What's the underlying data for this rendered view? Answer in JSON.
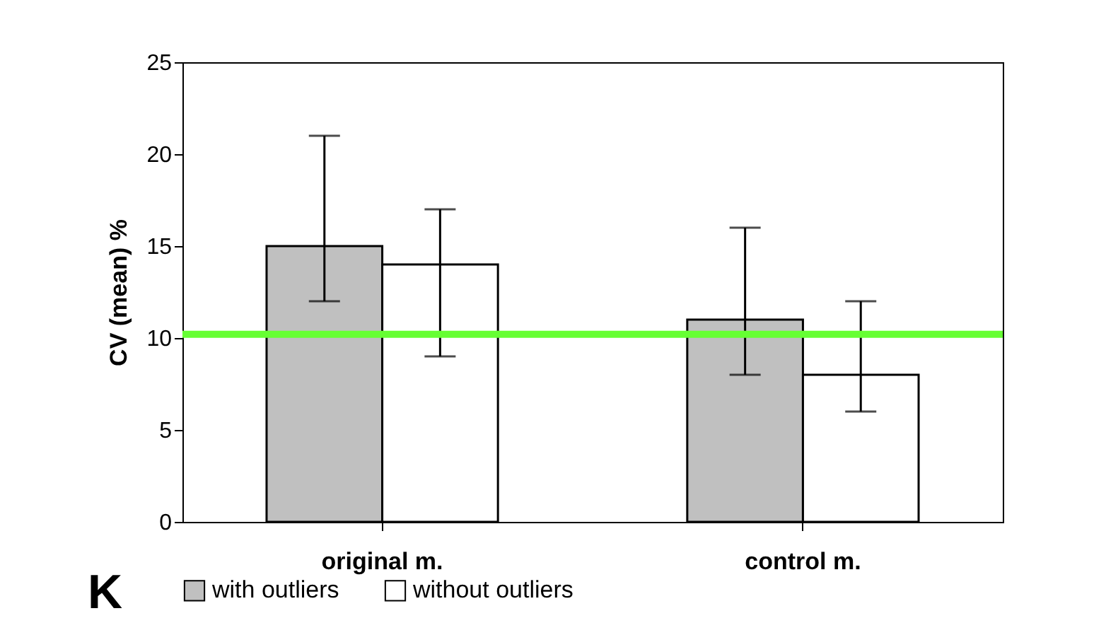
{
  "chart_data": {
    "type": "bar",
    "ylabel": "CV (mean)  %",
    "categories": [
      "original m.",
      "control m."
    ],
    "series": [
      {
        "name": "with outliers",
        "color": "#c0c0c0",
        "values": [
          15,
          11
        ],
        "errors": [
          [
            12,
            21
          ],
          [
            8,
            16
          ]
        ]
      },
      {
        "name": "without outliers",
        "color": "#ffffff",
        "values": [
          14,
          8
        ],
        "errors": [
          [
            9,
            17
          ],
          [
            6,
            12
          ]
        ]
      }
    ],
    "ylim": [
      0,
      25
    ],
    "yticks": [
      0,
      5,
      10,
      15,
      20,
      25
    ],
    "ref_lines": [
      {
        "axis": "y",
        "value": 10.2,
        "color": "#66ff33"
      }
    ],
    "legend": "bottom",
    "grid": false,
    "annotations": [
      "K"
    ]
  }
}
